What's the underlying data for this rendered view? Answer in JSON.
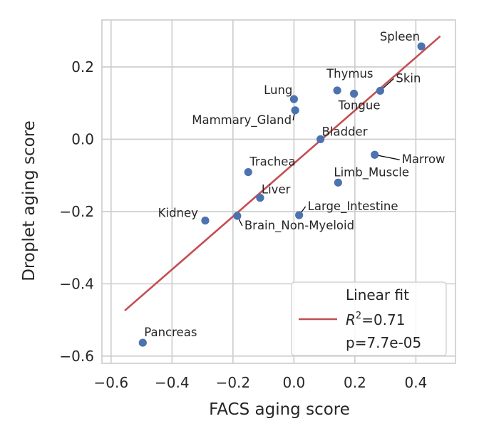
{
  "chart_data": {
    "type": "scatter",
    "title": "",
    "xlabel": "FACS aging score",
    "ylabel": "Droplet aging score",
    "xlim": [
      -0.63,
      0.53
    ],
    "ylim": [
      -0.62,
      0.33
    ],
    "x_ticks": [
      -0.6,
      -0.4,
      -0.2,
      0.0,
      0.2,
      0.4
    ],
    "x_tick_labels": [
      "−0.6",
      "−0.4",
      "−0.2",
      "0.0",
      "0.2",
      "0.4"
    ],
    "y_ticks": [
      -0.6,
      -0.4,
      -0.2,
      0.0,
      0.2
    ],
    "y_tick_labels": [
      "−0.6",
      "−0.4",
      "−0.2",
      "0.0",
      "0.2"
    ],
    "grid": true,
    "points": [
      {
        "name": "Spleen",
        "x": 0.418,
        "y": 0.257
      },
      {
        "name": "Skin",
        "x": 0.283,
        "y": 0.134
      },
      {
        "name": "Thymus",
        "x": 0.142,
        "y": 0.135
      },
      {
        "name": "Tongue",
        "x": 0.197,
        "y": 0.126
      },
      {
        "name": "Lung",
        "x": 0.0,
        "y": 0.111
      },
      {
        "name": "Mammary_Gland",
        "x": 0.004,
        "y": 0.08
      },
      {
        "name": "Bladder",
        "x": 0.087,
        "y": 0.0
      },
      {
        "name": "Marrow",
        "x": 0.265,
        "y": -0.043
      },
      {
        "name": "Trachea",
        "x": -0.15,
        "y": -0.091
      },
      {
        "name": "Limb_Muscle",
        "x": 0.145,
        "y": -0.12
      },
      {
        "name": "Liver",
        "x": -0.111,
        "y": -0.162
      },
      {
        "name": "Large_Intestine",
        "x": 0.017,
        "y": -0.21
      },
      {
        "name": "Brain_Non-Myeloid",
        "x": -0.186,
        "y": -0.212
      },
      {
        "name": "Kidney",
        "x": -0.291,
        "y": -0.225
      },
      {
        "name": "Pancreas",
        "x": -0.496,
        "y": -0.563
      }
    ],
    "fit_line": {
      "name": "Linear fit",
      "x": [
        -0.555,
        0.48
      ],
      "y": [
        -0.474,
        0.285
      ]
    },
    "legend": {
      "position": "lower-right",
      "entries": [
        "Linear fit",
        "R²=0.71",
        "p=7.7e-05"
      ],
      "r_squared": "0.71",
      "p_value": "7.7e-05"
    },
    "colors": {
      "points": "#4c72b0",
      "fit": "#c44e52",
      "grid": "#cccccc",
      "text": "#262626"
    }
  }
}
